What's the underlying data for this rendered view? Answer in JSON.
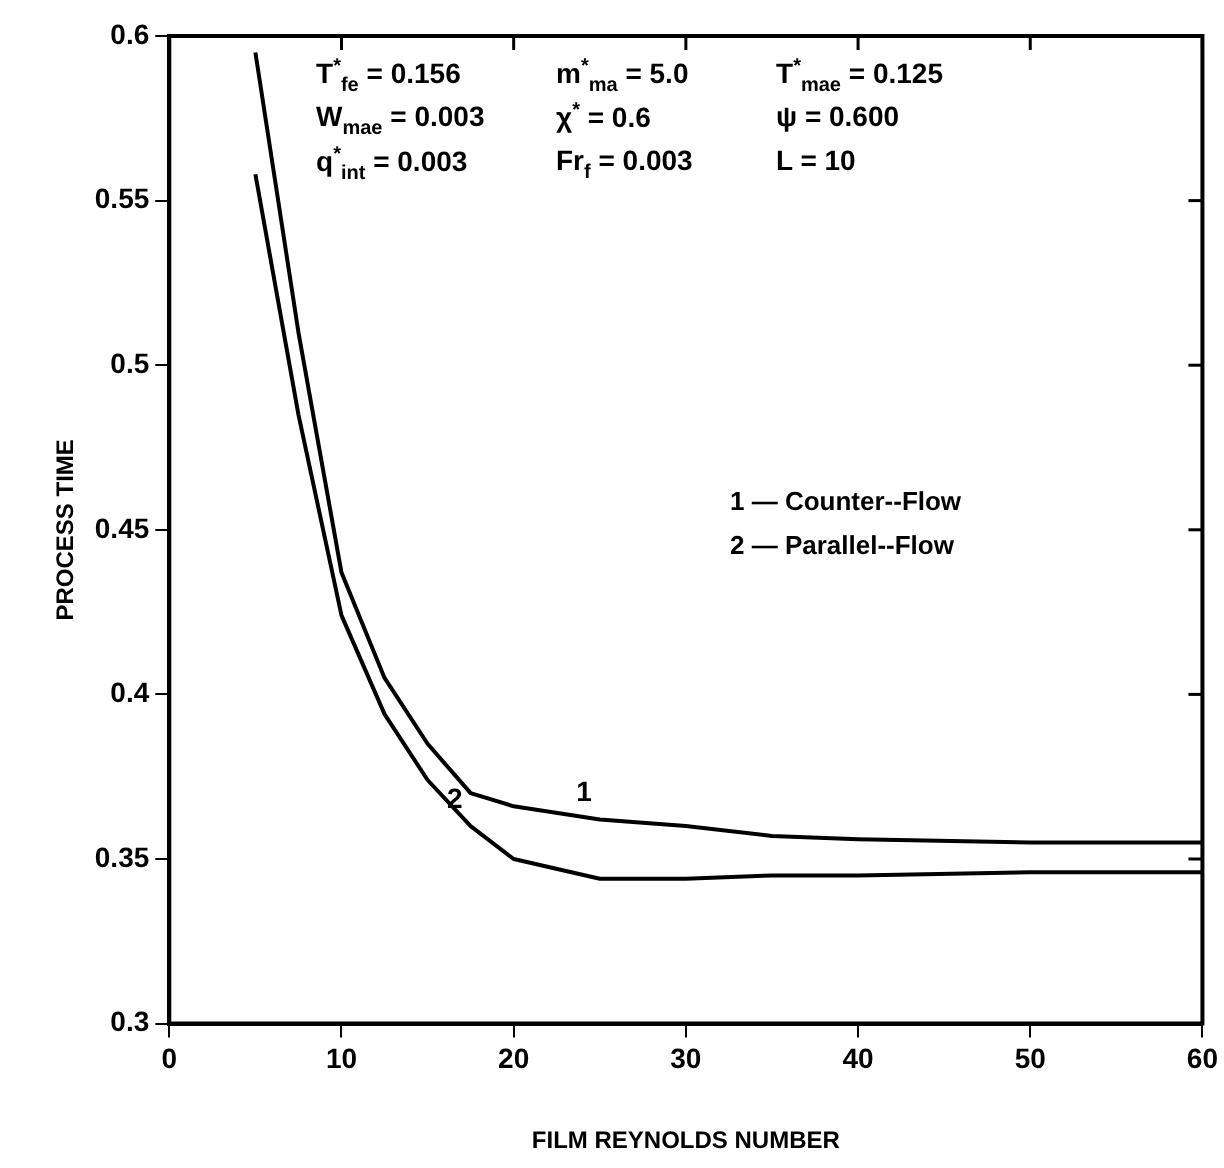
{
  "chart_data": {
    "type": "line",
    "xlabel": "FILM REYNOLDS NUMBER",
    "ylabel": "PROCESS TIME",
    "xlim": [
      0,
      60
    ],
    "xticks": [
      0,
      10,
      20,
      30,
      40,
      50,
      60
    ],
    "ylim": [
      0.3,
      0.6
    ],
    "yticks": [
      0.3,
      0.35,
      0.4,
      0.45,
      0.5,
      0.55,
      0.6
    ],
    "grid": false,
    "legend": false,
    "marker": "none",
    "line_style": "solid",
    "series": [
      {
        "color": "#000000",
        "x": [
          5,
          7.5,
          10,
          12.5,
          15,
          17.5,
          20,
          25,
          30,
          35,
          40,
          50,
          60
        ],
        "values": [
          0.595,
          0.51,
          0.437,
          0.405,
          0.385,
          0.37,
          0.366,
          0.362,
          0.36,
          0.357,
          0.356,
          0.355,
          0.355
        ]
      },
      {
        "color": "#000000",
        "x": [
          5,
          7.5,
          10,
          12.5,
          15,
          17.5,
          20,
          25,
          30,
          35,
          40,
          50,
          60
        ],
        "values": [
          0.558,
          0.485,
          0.424,
          0.394,
          0.374,
          0.36,
          0.35,
          0.344,
          0.344,
          0.345,
          0.345,
          0.346,
          0.346
        ]
      }
    ],
    "annotations": [
      "T$^{*}$$_{fe}$ = 0.156",
      "m$^{*}$$_{ma}$ = 5.0",
      "T$^{*}$$_{mae}$ = 0.125",
      "W$_{mae}$ = 0.003",
      "χ$^{*}$ = 0.6",
      "ψ = 0.600",
      "q$^{*}$$_{int}$ = 0.003",
      "Fr$_{f}$ = 0.003",
      "L = 10",
      "1 — Counter--Flow",
      "2 — Parallel--Flow",
      {
        "text": "1",
        "x": 25,
        "y": 0.362
      },
      {
        "text": "2",
        "x": 17.5,
        "y": 0.36
      }
    ]
  }
}
